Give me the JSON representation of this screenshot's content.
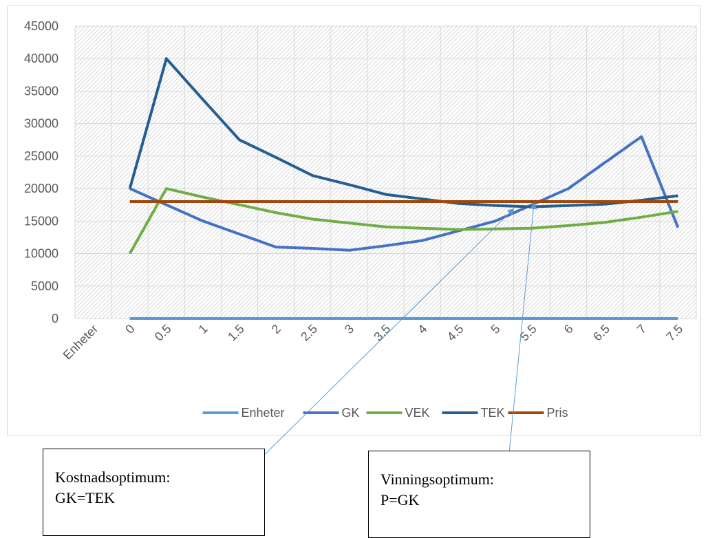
{
  "chart_data": {
    "type": "line",
    "categories": [
      "Enheter",
      "0",
      "0.5",
      "1",
      "1.5",
      "2",
      "2.5",
      "3",
      "3.5",
      "4",
      "4.5",
      "5",
      "5.5",
      "6",
      "6.5",
      "7",
      "7.5"
    ],
    "ylim": [
      0,
      45000
    ],
    "yticks": [
      0,
      5000,
      10000,
      15000,
      20000,
      25000,
      30000,
      35000,
      40000,
      45000
    ],
    "grid": true,
    "legend_position": "bottom",
    "series": [
      {
        "name": "Enheter",
        "color": "#5b9bd5",
        "values": [
          null,
          0,
          0,
          0,
          0,
          0,
          0,
          0,
          0,
          0,
          0,
          0,
          0,
          0,
          0,
          0,
          0
        ]
      },
      {
        "name": "GK",
        "color": "#4472c4",
        "values": [
          null,
          20000,
          17500,
          15000,
          13000,
          11000,
          10800,
          10500,
          11200,
          12000,
          13500,
          15000,
          17500,
          20000,
          24000,
          28000,
          14000
        ]
      },
      {
        "name": "VEK",
        "color": "#70ad47",
        "values": [
          null,
          10000,
          20000,
          18700,
          17500,
          16300,
          15300,
          14700,
          14100,
          13900,
          13700,
          13800,
          13900,
          14300,
          14800,
          15600,
          16500
        ]
      },
      {
        "name": "TEK",
        "color": "#255e91",
        "values": [
          null,
          20000,
          40000,
          33700,
          27500,
          24800,
          22000,
          20600,
          19100,
          18400,
          17700,
          17400,
          17200,
          17400,
          17600,
          18200,
          18900
        ]
      },
      {
        "name": "Pris",
        "color": "#9e480e",
        "values": [
          null,
          18000,
          18000,
          18000,
          18000,
          18000,
          18000,
          18000,
          18000,
          18000,
          18000,
          18000,
          18000,
          18000,
          18000,
          18000,
          18000
        ]
      }
    ]
  },
  "annotations": {
    "cost_optimum": {
      "line1": "Kostnadsoptimum:",
      "line2": "GK=TEK"
    },
    "profit_optimum": {
      "line1": "Vinningsoptimum:",
      "line2": "P=GK"
    }
  }
}
